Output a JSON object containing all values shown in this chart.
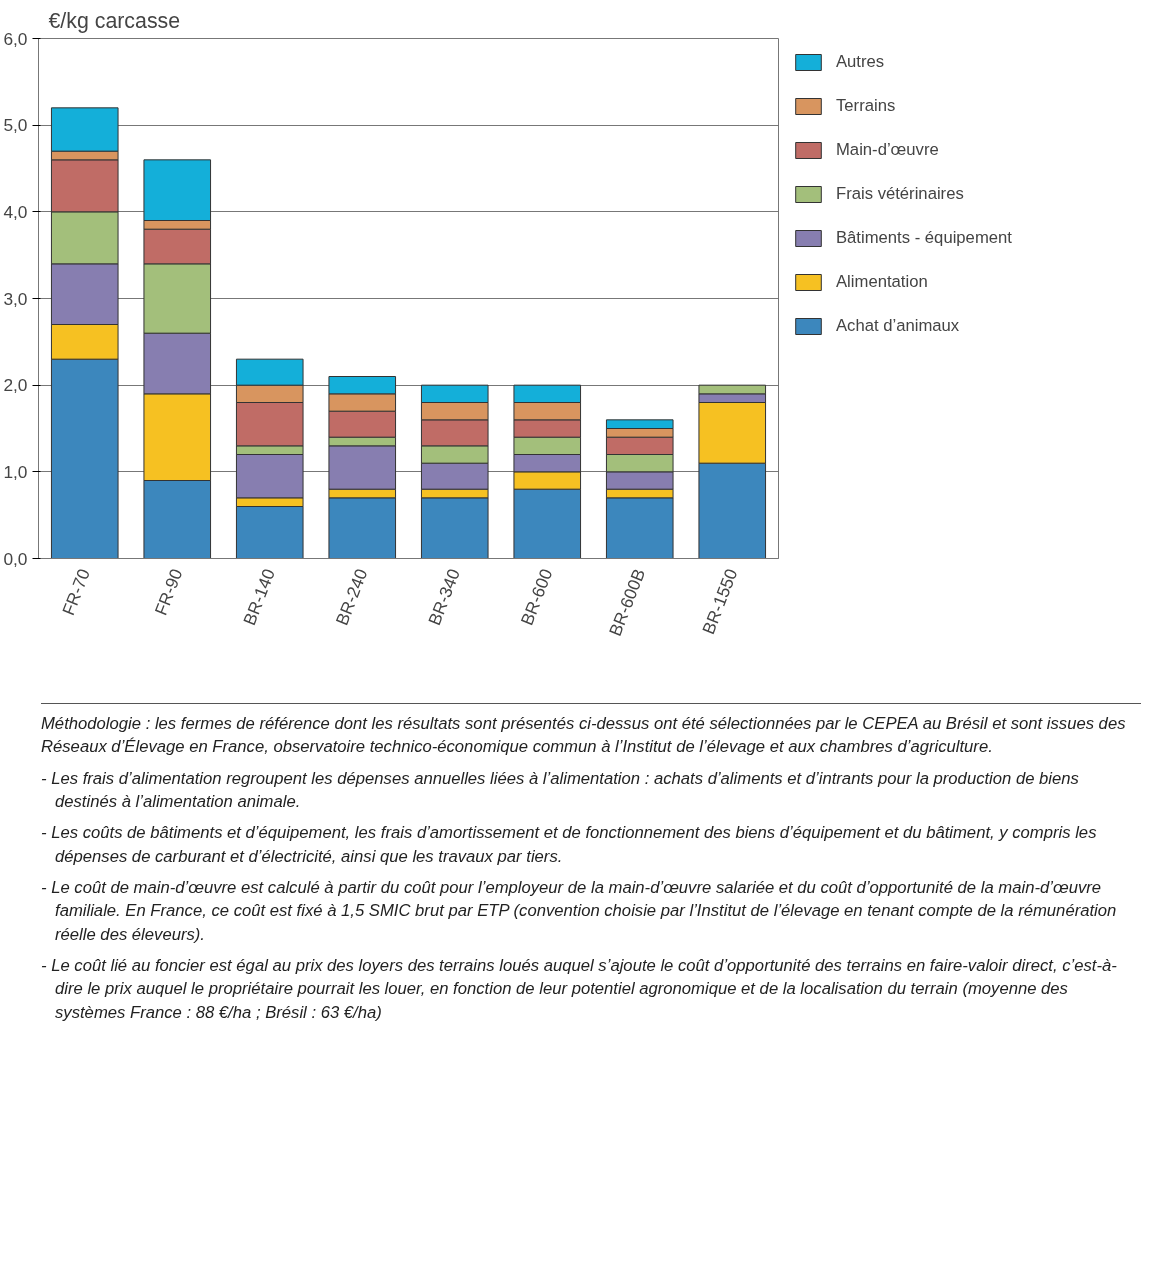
{
  "chart_data": {
    "type": "bar",
    "stacked": true,
    "ylabel": "€/kg carcasse",
    "categories": [
      "FR-70",
      "FR-90",
      "BR-140",
      "BR-240",
      "BR-340",
      "BR-600",
      "BR-600B",
      "BR-1550"
    ],
    "series": [
      {
        "name": "Achat d’animaux",
        "color": "#3c87bd",
        "values": [
          2.3,
          0.9,
          0.6,
          0.7,
          0.7,
          0.8,
          0.7,
          1.1
        ]
      },
      {
        "name": "Alimentation",
        "color": "#f6c122",
        "values": [
          0.4,
          1.0,
          0.1,
          0.1,
          0.1,
          0.2,
          0.1,
          0.7
        ]
      },
      {
        "name": "Bâtiments - équipement",
        "color": "#877eb0",
        "values": [
          0.7,
          0.7,
          0.5,
          0.5,
          0.3,
          0.2,
          0.2,
          0.1
        ]
      },
      {
        "name": "Frais vétérinaires",
        "color": "#a3bf7b",
        "values": [
          0.6,
          0.8,
          0.1,
          0.1,
          0.2,
          0.2,
          0.2,
          0.1
        ]
      },
      {
        "name": "Main-d’œuvre",
        "color": "#c06c66",
        "values": [
          0.6,
          0.4,
          0.5,
          0.3,
          0.3,
          0.2,
          0.2,
          null
        ]
      },
      {
        "name": "Terrains",
        "color": "#d8955f",
        "values": [
          0.1,
          0.1,
          0.2,
          0.2,
          0.2,
          0.2,
          0.1,
          null
        ]
      },
      {
        "name": "Autres",
        "color": "#14afd9",
        "values": [
          0.5,
          0.7,
          0.3,
          0.2,
          0.2,
          0.2,
          0.1,
          null
        ]
      }
    ],
    "ylim": [
      0,
      6
    ],
    "yticks": [
      {
        "value": 0,
        "label": "0,0"
      },
      {
        "value": 1,
        "label": "1,0"
      },
      {
        "value": 2,
        "label": "2,0"
      },
      {
        "value": 3,
        "label": "3,0"
      },
      {
        "value": 4,
        "label": "4,0"
      },
      {
        "value": 5,
        "label": "5,0"
      },
      {
        "value": 6,
        "label": "6,0"
      }
    ],
    "grid": "y",
    "legend": "right",
    "annotations": [
      "Méthodologie : les fermes de référence dont les résultats sont présentés ci-dessus ont été sélectionnées par le CEPEA au Brésil et sont issues des Réseaux d’Élevage en France, observatoire technico-économique commun à l’Institut de l’élevage et aux chambres d’agriculture.",
      "- Les frais d’alimentation regroupent les dépenses annuelles liées à l’alimentation : achats d’aliments et d’intrants pour la production de biens destinés à l’alimentation animale.",
      "- Les coûts de bâtiments et d’équipement, les frais d’amortissement et de fonctionnement des biens d’équipement et du bâtiment, y compris les dépenses de carburant et d’électricité, ainsi que les travaux par tiers.",
      "- Le coût de main-d’œuvre est calculé à partir du coût pour l’employeur de la main-d’œuvre salariée et du coût d’opportunité de la main-d’œuvre familiale. En France, ce coût est fixé à 1,5 SMIC brut par ETP (convention choisie par l’Institut de l’élevage en tenant compte de la rémunération réelle des éleveurs).",
      "- Le coût lié au foncier est égal au prix des loyers des terrains loués auquel s’ajoute le coût d’opportunité des terrains en faire-valoir direct, c’est-à-dire le prix auquel le propriétaire pourrait les louer, en fonction de leur potentiel agronomique et de la localisation du terrain (moyenne des systèmes France : 88 €/ha ; Brésil : 63 €/ha)"
    ]
  }
}
